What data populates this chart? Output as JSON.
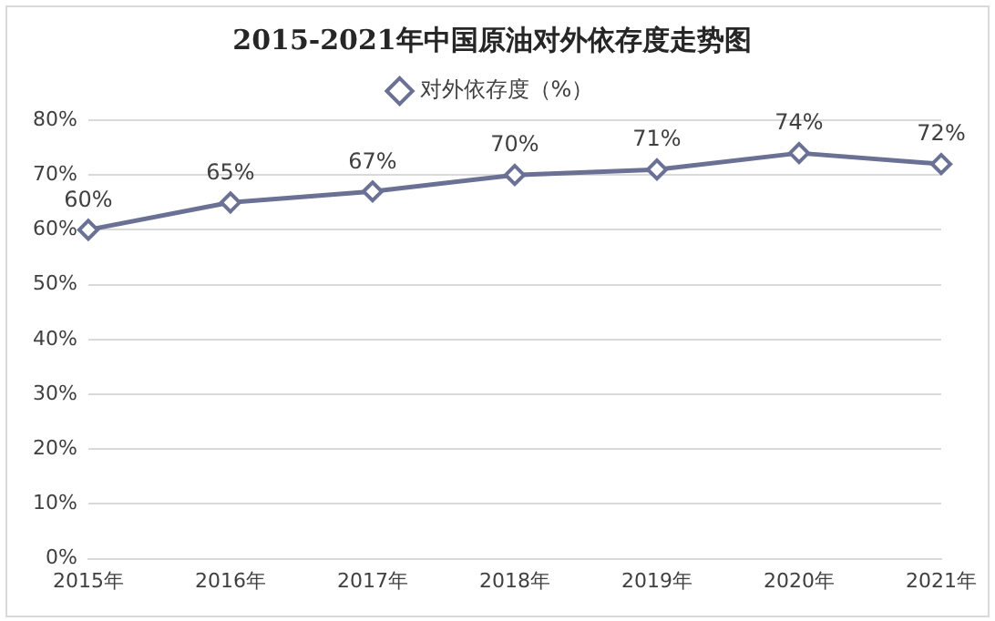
{
  "chart_data": {
    "type": "line",
    "title": "2015-2021年中国原油对外依存度走势图",
    "categories": [
      "2015年",
      "2016年",
      "2017年",
      "2018年",
      "2019年",
      "2020年",
      "2021年"
    ],
    "series": [
      {
        "name": "对外依存度（%）",
        "color": "#6a7194",
        "values": [
          60,
          65,
          67,
          70,
          71,
          74,
          72
        ],
        "value_labels": [
          "60%",
          "65%",
          "67%",
          "70%",
          "71%",
          "74%",
          "72%"
        ]
      }
    ],
    "ylim": [
      0,
      80
    ],
    "yticks": [
      {
        "value": 0,
        "label": "0%"
      },
      {
        "value": 10,
        "label": "10%"
      },
      {
        "value": 20,
        "label": "20%"
      },
      {
        "value": 30,
        "label": "30%"
      },
      {
        "value": 40,
        "label": "40%"
      },
      {
        "value": 50,
        "label": "50%"
      },
      {
        "value": 60,
        "label": "60%"
      },
      {
        "value": 70,
        "label": "70%"
      },
      {
        "value": 80,
        "label": "80%"
      }
    ],
    "grid": "y",
    "legend": "top",
    "marker": "diamond",
    "line_style": "solid"
  }
}
